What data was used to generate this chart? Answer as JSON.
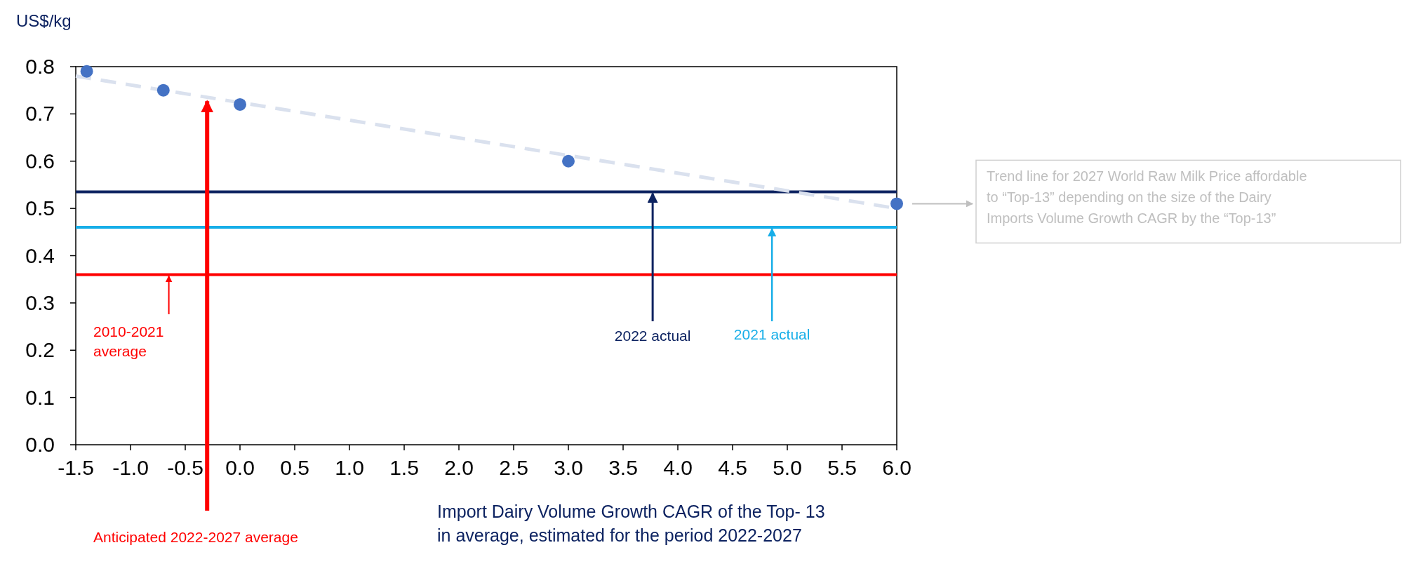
{
  "chart_data": {
    "type": "scatter",
    "ylabel": "US$/kg",
    "xlabel": "Import Dairy Volume Growth CAGR of the Top- 13 in average, estimated for the period 2022-2027",
    "xlim": [
      -1.5,
      6
    ],
    "xticks": [
      -1.5,
      {
        "value": -1,
        "label": "-1.0"
      },
      -0.5,
      {
        "value": 0,
        "label": "0.0"
      },
      0.5,
      {
        "value": 1,
        "label": "1.0"
      },
      1.5,
      {
        "value": 2,
        "label": "2.0"
      },
      2.5,
      {
        "value": 3,
        "label": "3.0"
      },
      3.5,
      {
        "value": 4,
        "label": "4.0"
      },
      4.5,
      {
        "value": 5,
        "label": "5.0"
      },
      5.5,
      {
        "value": 6,
        "label": "6.0"
      }
    ],
    "ylim": [
      0,
      0.8
    ],
    "yticks": [
      {
        "value": 0,
        "label": "0.0"
      },
      0.1,
      0.2,
      0.3,
      0.4,
      0.5,
      0.6,
      0.7,
      0.8
    ],
    "grid": false,
    "series": [
      {
        "type": "line",
        "color": "#dae1ee",
        "line_style": "dashed",
        "marker": "none",
        "x": [
          -1.5,
          6
        ],
        "values": [
          0.78,
          0.5
        ]
      },
      {
        "color": "#4472c4",
        "marker": "circle",
        "x": [
          -1.4,
          -0.7,
          0,
          3,
          6
        ],
        "values": [
          0.79,
          0.75,
          0.72,
          0.6,
          0.51
        ]
      }
    ],
    "ref_lines": [
      {
        "axis": "y",
        "value": 0.535,
        "color": "#0d2361"
      },
      {
        "axis": "y",
        "value": 0.46,
        "color": "#17aee8"
      },
      {
        "axis": "y",
        "value": 0.36,
        "color": "#ff0000"
      }
    ],
    "annotations": [
      {
        "text": "2010-2021 average",
        "x": -0.65,
        "y": 0.36
      },
      {
        "text": "Anticipated 2022-2027 average",
        "x": -0.3,
        "y": 0.73
      },
      {
        "text": "2022 actual",
        "x": 3.77,
        "y": 0.535
      },
      {
        "text": "2021 actual",
        "x": 4.86,
        "y": 0.46
      },
      "Trend line for 2027 World Raw Milk Price affordable to “Top-13” depending on the size of the Dairy Imports Volume Growth CAGR by the “Top-13”"
    ]
  }
}
